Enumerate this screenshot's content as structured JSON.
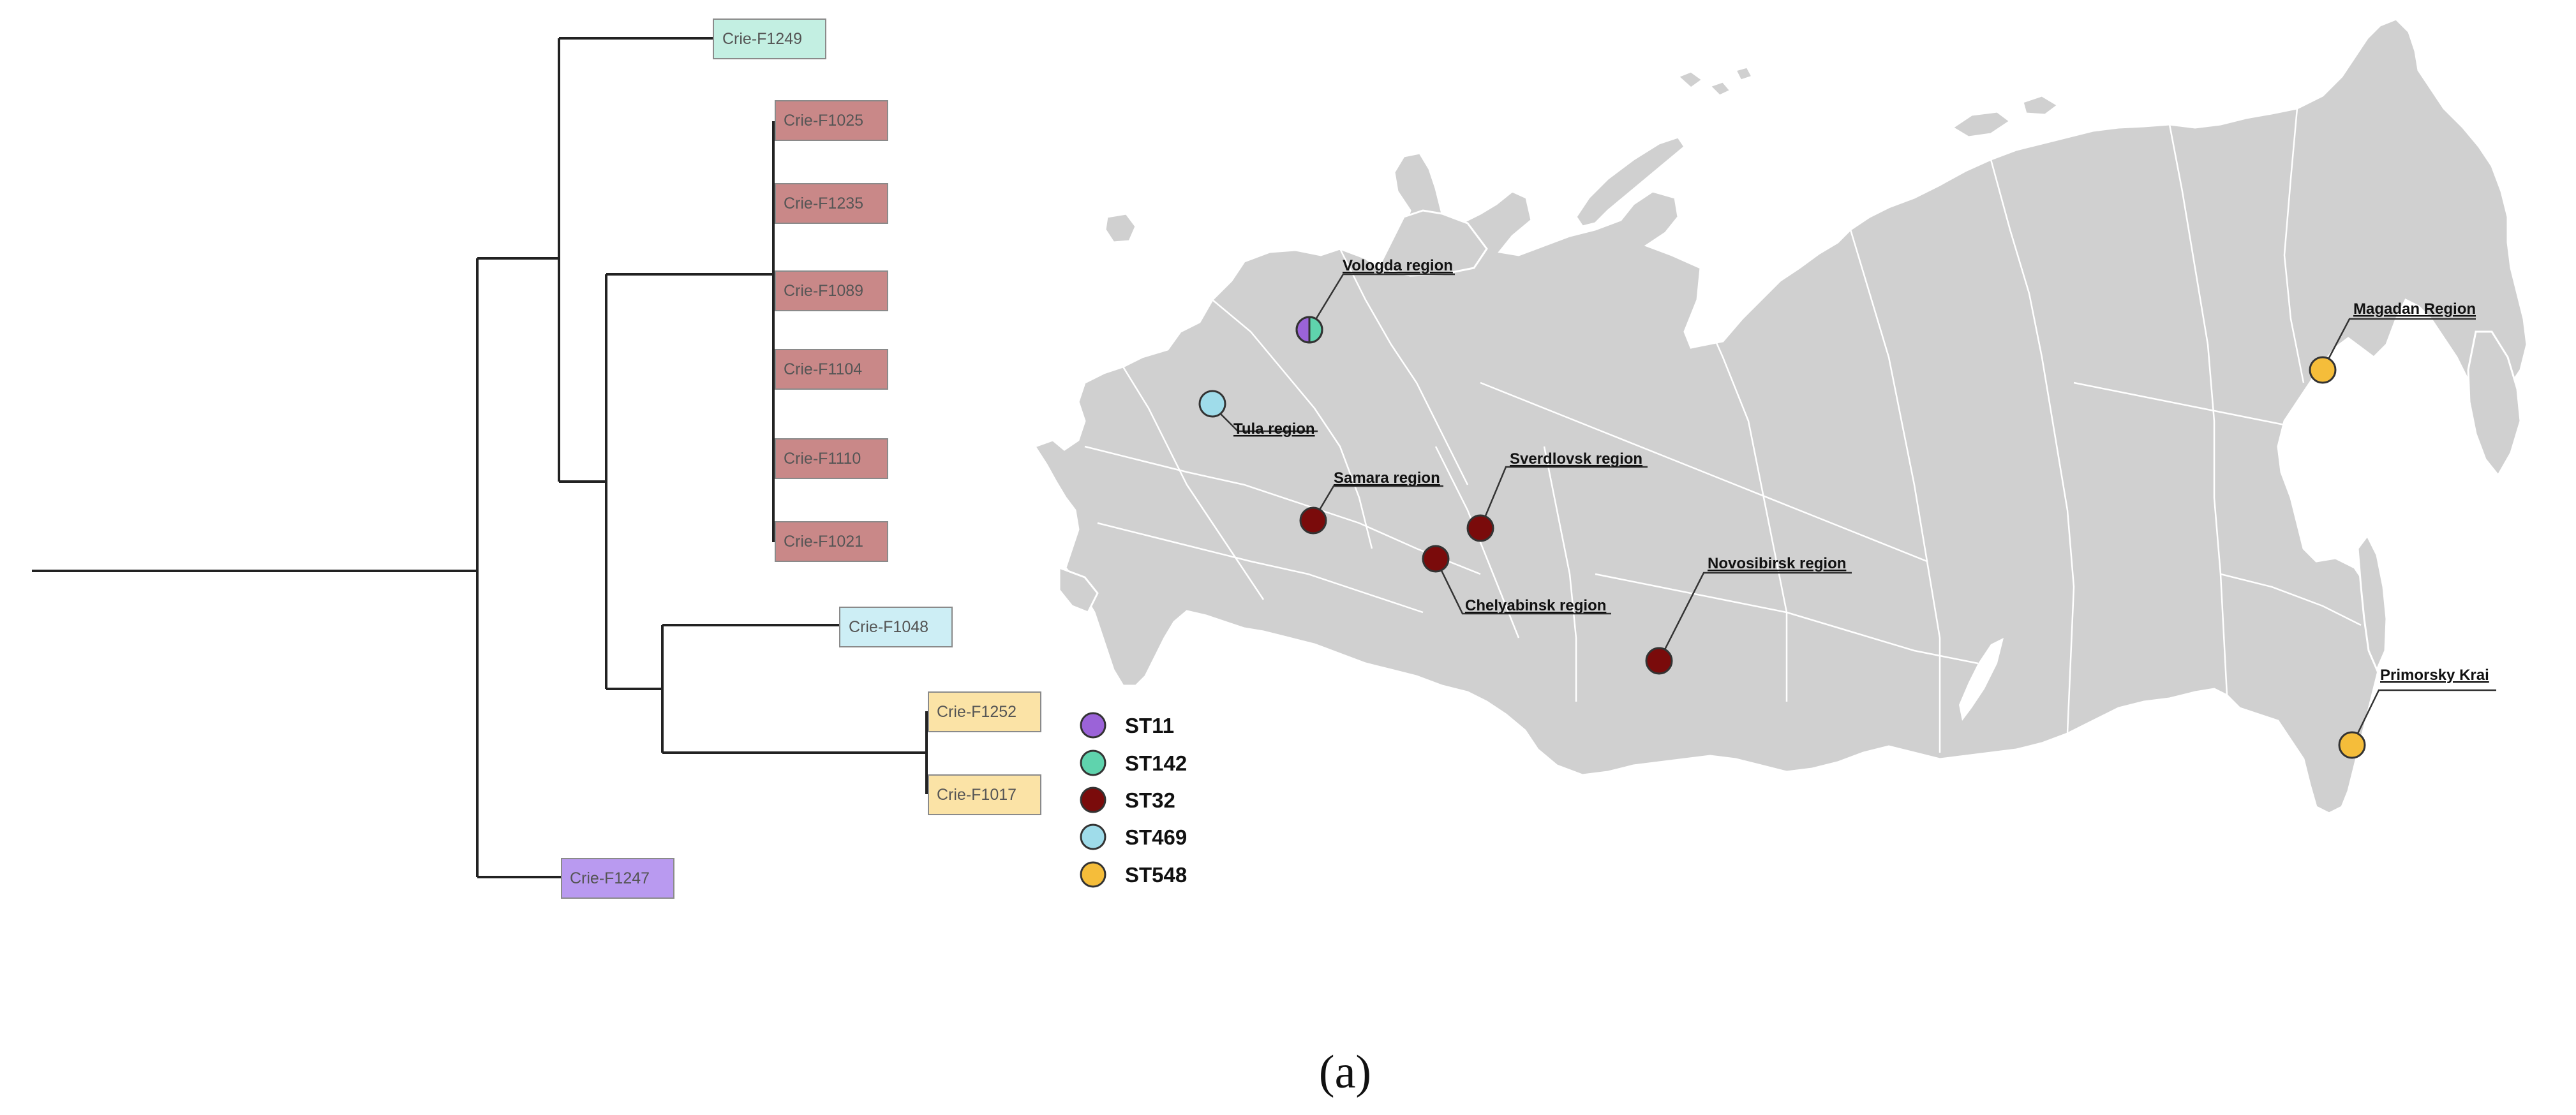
{
  "tree": {
    "tips": [
      {
        "label": "Crie-F1249",
        "st": "ST142"
      },
      {
        "label": "Crie-F1025",
        "st": "ST32"
      },
      {
        "label": "Crie-F1235",
        "st": "ST32"
      },
      {
        "label": "Crie-F1089",
        "st": "ST32"
      },
      {
        "label": "Crie-F1104",
        "st": "ST32"
      },
      {
        "label": "Crie-F1110",
        "st": "ST32"
      },
      {
        "label": "Crie-F1021",
        "st": "ST32"
      },
      {
        "label": "Crie-F1048",
        "st": "ST469"
      },
      {
        "label": "Crie-F1252",
        "st": "ST548"
      },
      {
        "label": "Crie-F1017",
        "st": "ST548"
      },
      {
        "label": "Crie-F1247",
        "st": "ST11"
      }
    ]
  },
  "legend": [
    {
      "label": "ST11",
      "color": "#9b63d8"
    },
    {
      "label": "ST142",
      "color": "#5fd3ad"
    },
    {
      "label": "ST32",
      "color": "#7a0b0b"
    },
    {
      "label": "ST469",
      "color": "#9fdcea"
    },
    {
      "label": "ST548",
      "color": "#f5bd3a"
    }
  ],
  "tip_colors": {
    "ST11": "#b99af0",
    "ST142": "#c3efe2",
    "ST32": "#c98888",
    "ST469": "#cdeef5",
    "ST548": "#fbe3a6"
  },
  "map": {
    "regions": [
      {
        "label": "Vologda region",
        "st": [
          "ST11",
          "ST142"
        ]
      },
      {
        "label": "Tula region",
        "st": [
          "ST469"
        ]
      },
      {
        "label": "Samara region",
        "st": [
          "ST32"
        ]
      },
      {
        "label": "Sverdlovsk region",
        "st": [
          "ST32"
        ]
      },
      {
        "label": "Chelyabinsk region",
        "st": [
          "ST32"
        ]
      },
      {
        "label": "Novosibirsk region",
        "st": [
          "ST32"
        ]
      },
      {
        "label": "Magadan Region",
        "st": [
          "ST548"
        ]
      },
      {
        "label": "Primorsky Krai",
        "st": [
          "ST548"
        ]
      }
    ]
  },
  "panel_label": "(a)"
}
